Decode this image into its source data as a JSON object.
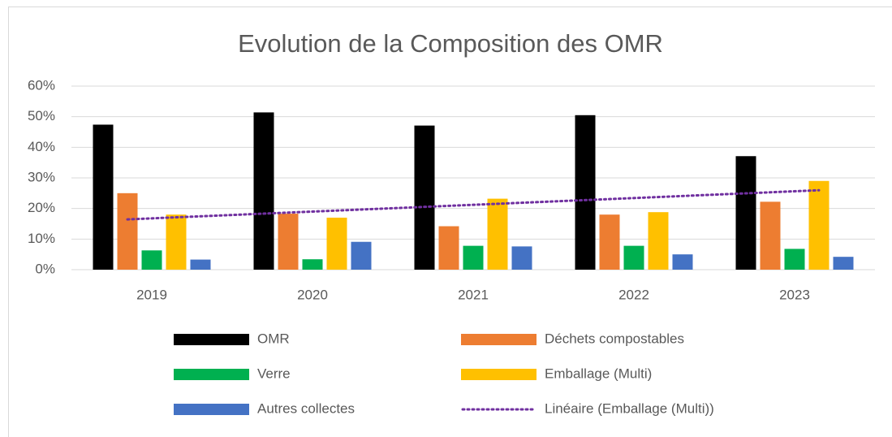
{
  "chart_data": {
    "type": "bar",
    "title": "Evolution de la Composition des OMR",
    "categories": [
      "2019",
      "2020",
      "2021",
      "2022",
      "2023"
    ],
    "series": [
      {
        "name": "OMR",
        "color": "#000000",
        "values": [
          47.4,
          51.4,
          47.1,
          50.5,
          37.1
        ]
      },
      {
        "name": "Déchets compostables",
        "color": "#ed7d31",
        "values": [
          25.0,
          18.3,
          14.2,
          18.0,
          22.2
        ]
      },
      {
        "name": "Verre",
        "color": "#00b050",
        "values": [
          6.3,
          3.4,
          7.8,
          7.8,
          6.8
        ]
      },
      {
        "name": "Emballage (Multi)",
        "color": "#ffc000",
        "values": [
          18.0,
          17.0,
          23.2,
          18.8,
          29.0
        ]
      },
      {
        "name": "Autres collectes",
        "color": "#4472c4",
        "values": [
          3.3,
          9.1,
          7.6,
          5.0,
          4.2
        ]
      }
    ],
    "trendline": {
      "series": 3,
      "name": "Linéaire (Emballage (Multi))",
      "color": "#7030a0"
    },
    "ylim": [
      0,
      60
    ],
    "yticks": [
      {
        "value": 0,
        "label": "0%"
      },
      {
        "value": 10,
        "label": "10%"
      },
      {
        "value": 20,
        "label": "20%"
      },
      {
        "value": 30,
        "label": "30%"
      },
      {
        "value": 40,
        "label": "40%"
      },
      {
        "value": 50,
        "label": "50%"
      },
      {
        "value": 60,
        "label": "60%"
      }
    ],
    "grid": true
  }
}
